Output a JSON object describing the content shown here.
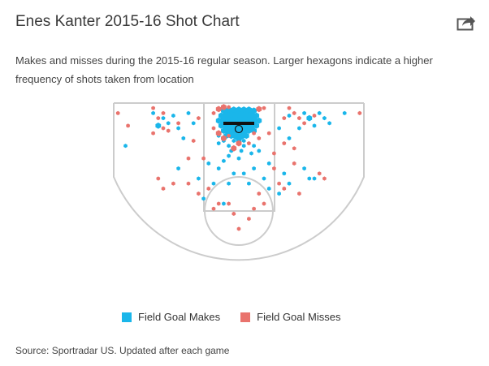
{
  "header": {
    "title": "Enes Kanter 2015-16 Shot Chart",
    "subtitle": "Makes and misses during the 2015-16 regular season. Larger hexagons indicate a higher frequency of shots taken from location",
    "share_icon": "share-arrow-icon"
  },
  "colors": {
    "make": "#1ab6ea",
    "miss": "#e9736d",
    "court_line": "#cccccc",
    "rim": "#111111"
  },
  "legend": {
    "makes_label": "Field Goal Makes",
    "misses_label": "Field Goal Misses"
  },
  "footer": {
    "source": "Source: Sportradar US. Updated after each game"
  },
  "chart_data": {
    "type": "scatter",
    "x_units": "feet from basket center (court width -25 to 25)",
    "y_units": "feet from baseline",
    "xlim": [
      -25,
      25
    ],
    "ylim": [
      0,
      47
    ],
    "grid": false,
    "legend_position": "bottom",
    "series": [
      {
        "name": "Field Goal Makes",
        "points": [
          [
            -1,
            1.5,
            2
          ],
          [
            0,
            1.5,
            2
          ],
          [
            1,
            1.5,
            2
          ],
          [
            2,
            1.5,
            2
          ],
          [
            -2,
            1.5,
            2
          ],
          [
            -3,
            1.5,
            1.5
          ],
          [
            3,
            1.5,
            1.5
          ],
          [
            -1.5,
            2.5,
            2
          ],
          [
            -0.5,
            2.5,
            2
          ],
          [
            0.5,
            2.5,
            2
          ],
          [
            1.5,
            2.5,
            2
          ],
          [
            2.5,
            2.5,
            2
          ],
          [
            -2.5,
            2.5,
            2
          ],
          [
            -3.5,
            2.5,
            1.5
          ],
          [
            3.5,
            2.5,
            1.5
          ],
          [
            -1,
            3.5,
            2
          ],
          [
            0,
            3.5,
            2
          ],
          [
            1,
            3.5,
            2
          ],
          [
            2,
            3.5,
            2
          ],
          [
            -2,
            3.5,
            2
          ],
          [
            -3,
            3.5,
            2
          ],
          [
            3,
            3.5,
            2
          ],
          [
            -4,
            3.5,
            1.5
          ],
          [
            4,
            3.5,
            1.5
          ],
          [
            -1.5,
            4.5,
            2
          ],
          [
            -0.5,
            4.5,
            2
          ],
          [
            0.5,
            4.5,
            2
          ],
          [
            1.5,
            4.5,
            2
          ],
          [
            2.5,
            4.5,
            2
          ],
          [
            -2.5,
            4.5,
            2
          ],
          [
            3.5,
            4.5,
            1.5
          ],
          [
            -3.5,
            4.5,
            1.5
          ],
          [
            -1,
            5.5,
            2
          ],
          [
            0,
            5.5,
            2
          ],
          [
            1,
            5.5,
            2
          ],
          [
            2,
            5.5,
            1.5
          ],
          [
            -2,
            5.5,
            2
          ],
          [
            -3,
            5.5,
            1.5
          ],
          [
            3,
            5.5,
            1.5
          ],
          [
            -1.5,
            6.5,
            1.5
          ],
          [
            -0.5,
            6.5,
            2
          ],
          [
            0.5,
            6.5,
            2
          ],
          [
            1.5,
            6.5,
            1.5
          ],
          [
            -2.5,
            6.5,
            1.5
          ],
          [
            -4,
            6.5,
            1
          ],
          [
            0,
            7.5,
            1.5
          ],
          [
            -1,
            7.5,
            1
          ],
          [
            1,
            7.5,
            1
          ],
          [
            -3,
            7.5,
            1
          ],
          [
            -2,
            8.5,
            1
          ],
          [
            1,
            8.5,
            1
          ],
          [
            0.5,
            9.5,
            1
          ],
          [
            -1.5,
            9.5,
            1
          ],
          [
            -4,
            8,
            1
          ],
          [
            3,
            8.5,
            1
          ],
          [
            -2,
            10.5,
            1
          ],
          [
            0,
            11,
            1
          ],
          [
            2.5,
            10,
            1
          ],
          [
            4,
            9.5,
            1
          ],
          [
            -3,
            11.5,
            1
          ],
          [
            -17,
            2,
            1
          ],
          [
            -15,
            3,
            1
          ],
          [
            -13,
            2.5,
            1
          ],
          [
            -10,
            2,
            1
          ],
          [
            -14,
            4,
            1
          ],
          [
            -16,
            4.5,
            1.5
          ],
          [
            -12,
            5,
            1
          ],
          [
            16,
            2,
            1
          ],
          [
            14,
            3,
            1.5
          ],
          [
            13,
            2,
            1
          ],
          [
            10,
            2.5,
            1
          ],
          [
            15,
            4.5,
            1
          ],
          [
            12,
            5,
            1
          ],
          [
            17,
            3,
            1
          ],
          [
            18,
            4,
            1
          ],
          [
            21,
            2,
            1
          ],
          [
            -22.5,
            8.5,
            1
          ],
          [
            -9,
            4,
            1
          ],
          [
            -11,
            7,
            1
          ],
          [
            8,
            5,
            1
          ],
          [
            10,
            7,
            1
          ],
          [
            -6,
            12,
            1
          ],
          [
            6,
            12,
            1
          ],
          [
            -12,
            13,
            1
          ],
          [
            -8,
            15,
            1
          ],
          [
            -5,
            16,
            1
          ],
          [
            -2,
            16,
            1
          ],
          [
            2,
            16,
            1
          ],
          [
            5,
            15,
            1
          ],
          [
            9,
            14,
            1
          ],
          [
            13,
            13,
            1
          ],
          [
            14,
            15,
            1
          ],
          [
            15,
            15,
            1
          ],
          [
            -1,
            14,
            1
          ],
          [
            1,
            14,
            1
          ],
          [
            3,
            13,
            1
          ],
          [
            -4,
            13,
            1
          ],
          [
            6,
            17,
            1
          ],
          [
            -3,
            20,
            1
          ],
          [
            -7,
            19,
            1
          ],
          [
            8,
            18,
            1
          ],
          [
            10,
            16,
            1
          ]
        ]
      },
      {
        "name": "Field Goal Misses",
        "points": [
          [
            -3,
            0.8,
            1.5
          ],
          [
            -4,
            1.2,
            1.5
          ],
          [
            4,
            1.2,
            1.5
          ],
          [
            5,
            1,
            1
          ],
          [
            -5,
            2,
            1
          ],
          [
            -2,
            0.8,
            1
          ],
          [
            -4,
            6,
            1.5
          ],
          [
            -3,
            7,
            1.5
          ],
          [
            -1,
            9,
            1.5
          ],
          [
            0,
            8,
            1.5
          ],
          [
            2,
            8,
            1
          ],
          [
            -2,
            6.5,
            1
          ],
          [
            3,
            6,
            1
          ],
          [
            -5,
            5,
            1
          ],
          [
            4,
            7,
            1
          ],
          [
            -17,
            1,
            1
          ],
          [
            -16,
            3,
            1
          ],
          [
            -15,
            2,
            1
          ],
          [
            -15,
            5,
            1
          ],
          [
            -17,
            6,
            1
          ],
          [
            -14,
            5.5,
            1
          ],
          [
            -12,
            4,
            1
          ],
          [
            -8,
            3,
            1
          ],
          [
            10,
            1,
            1
          ],
          [
            11,
            2,
            1
          ],
          [
            15,
            2.5,
            1
          ],
          [
            13,
            4,
            1
          ],
          [
            12,
            3,
            1
          ],
          [
            9,
            3,
            1
          ],
          [
            -24,
            2,
            1
          ],
          [
            24,
            2,
            1
          ],
          [
            -22,
            4.5,
            1
          ],
          [
            -9,
            7.5,
            1
          ],
          [
            9,
            8,
            1
          ],
          [
            7,
            10,
            1
          ],
          [
            11,
            9,
            1
          ],
          [
            6,
            6,
            1
          ],
          [
            -16,
            15,
            1
          ],
          [
            -15,
            17,
            1
          ],
          [
            -13,
            16,
            1
          ],
          [
            -7,
            11,
            1
          ],
          [
            -10,
            11,
            1
          ],
          [
            7,
            13,
            1
          ],
          [
            11,
            12,
            1
          ],
          [
            -4,
            20,
            1
          ],
          [
            -2,
            20,
            1
          ],
          [
            4,
            18,
            1
          ],
          [
            8,
            16,
            1
          ],
          [
            9,
            17,
            1
          ],
          [
            -1,
            22,
            1
          ],
          [
            2,
            23,
            1
          ],
          [
            0,
            25,
            1
          ],
          [
            3,
            21,
            1
          ],
          [
            16,
            14,
            1
          ],
          [
            17,
            15,
            1
          ],
          [
            5,
            20,
            1
          ],
          [
            -8,
            18,
            1
          ],
          [
            -6,
            17,
            1
          ],
          [
            -10,
            16,
            1
          ],
          [
            12,
            18,
            1
          ],
          [
            -5,
            21,
            1
          ]
        ]
      }
    ]
  }
}
